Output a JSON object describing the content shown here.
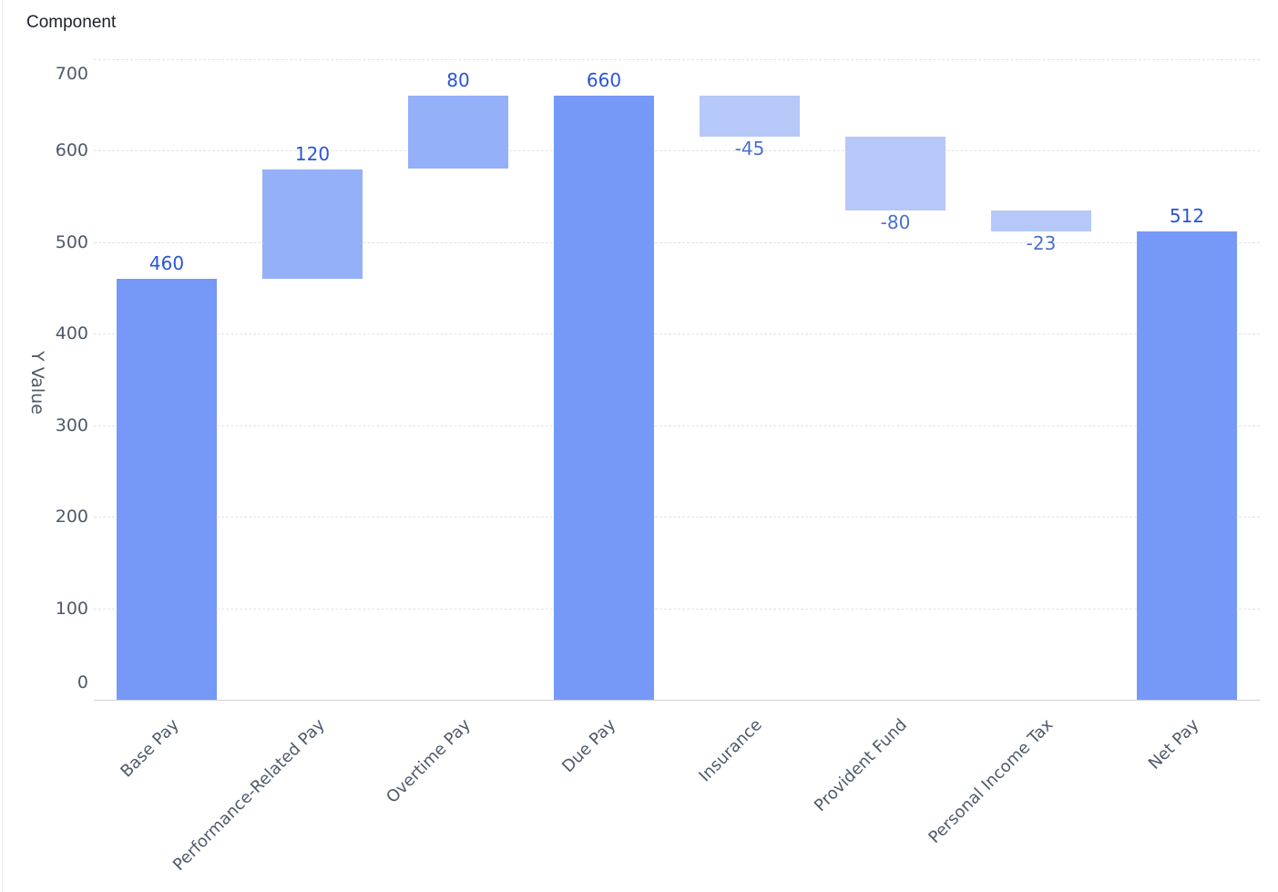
{
  "chart_title": "Component",
  "chart_data": {
    "type": "bar",
    "subtype": "waterfall",
    "title": "Component",
    "xlabel": "",
    "ylabel": "Y Value",
    "ylim": [
      0,
      700
    ],
    "yticks": [
      0,
      100,
      200,
      300,
      400,
      500,
      600,
      700
    ],
    "grid": true,
    "categories": [
      "Base Pay",
      "Performance-Related Pay",
      "Overtime Pay",
      "Due Pay",
      "Insurance",
      "Provident Fund",
      "Personal Income Tax",
      "Net Pay"
    ],
    "values": [
      460,
      120,
      80,
      660,
      -45,
      -80,
      -23,
      512
    ],
    "kinds": [
      "total",
      "increase",
      "increase",
      "total",
      "decrease",
      "decrease",
      "decrease",
      "total"
    ],
    "bar_ranges": [
      [
        0,
        460
      ],
      [
        460,
        580
      ],
      [
        580,
        660
      ],
      [
        0,
        660
      ],
      [
        615,
        660
      ],
      [
        535,
        615
      ],
      [
        512,
        535
      ],
      [
        0,
        512
      ]
    ],
    "labels": [
      "460",
      "120",
      "80",
      "660",
      "-45",
      "-80",
      "-23",
      "512"
    ]
  },
  "colors": {
    "total": "#7699f7",
    "increase": "#94b0f8",
    "decrease": "#b6c8f8",
    "label_positive": "#2a55d4",
    "label_negative": "#4a6fd0",
    "axis_text": "#4e5969",
    "grid": "#e1e3e8"
  },
  "axis": {
    "y_title": "Y Value",
    "y_tick_labels": [
      "0",
      "100",
      "200",
      "300",
      "400",
      "500",
      "600",
      "700"
    ]
  }
}
